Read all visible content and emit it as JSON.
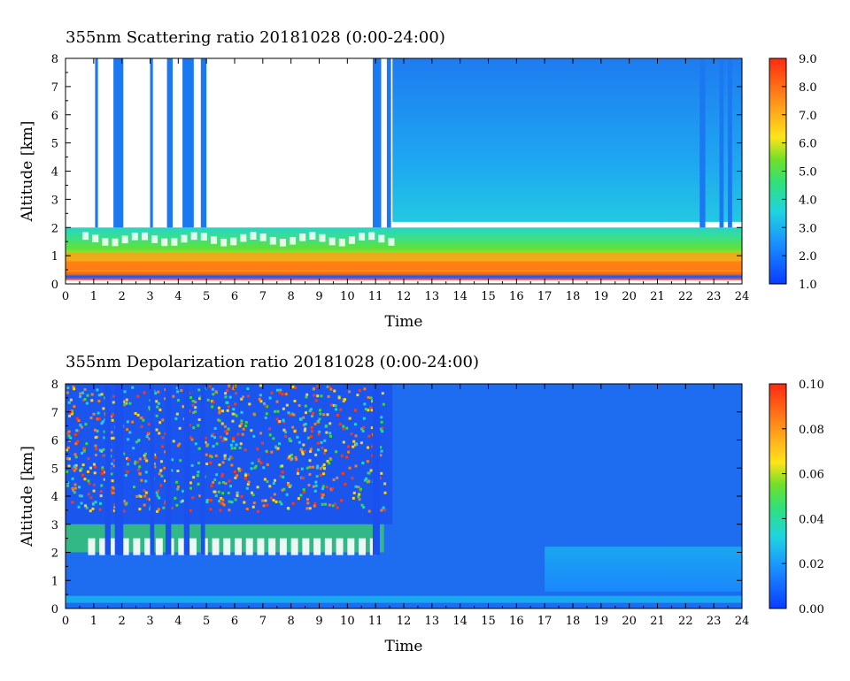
{
  "chart_data": [
    {
      "type": "heatmap",
      "title": "355nm Scattering ratio  20181028 (0:00-24:00)",
      "xlabel": "Time",
      "ylabel": "Altitude [km]",
      "xlim": [
        0,
        24
      ],
      "ylim": [
        0,
        8
      ],
      "x_ticks": [
        "0",
        "1",
        "2",
        "3",
        "4",
        "5",
        "6",
        "7",
        "8",
        "9",
        "10",
        "11",
        "12",
        "13",
        "14",
        "15",
        "16",
        "17",
        "18",
        "19",
        "20",
        "21",
        "22",
        "23",
        "24"
      ],
      "y_ticks": [
        "0",
        "1",
        "2",
        "3",
        "4",
        "5",
        "6",
        "7",
        "8"
      ],
      "colorbar": {
        "range": [
          1.0,
          9.0
        ],
        "ticks": [
          "1.0",
          "2.0",
          "3.0",
          "4.0",
          "5.0",
          "6.0",
          "7.0",
          "8.0",
          "9.0"
        ]
      },
      "colors": {
        "low": "#0a3cff",
        "mid_low": "#1fd4e0",
        "mid": "#35dc3a",
        "mid_high": "#ffe31a",
        "high": "#ff2a10"
      }
    },
    {
      "type": "heatmap",
      "title": "355nm Depolarization ratio  20181028 (0:00-24:00)",
      "xlabel": "Time",
      "ylabel": "Altitude [km]",
      "xlim": [
        0,
        24
      ],
      "ylim": [
        0,
        8
      ],
      "x_ticks": [
        "0",
        "1",
        "2",
        "3",
        "4",
        "5",
        "6",
        "7",
        "8",
        "9",
        "10",
        "11",
        "12",
        "13",
        "14",
        "15",
        "16",
        "17",
        "18",
        "19",
        "20",
        "21",
        "22",
        "23",
        "24"
      ],
      "y_ticks": [
        "0",
        "1",
        "2",
        "3",
        "4",
        "5",
        "6",
        "7",
        "8"
      ],
      "colorbar": {
        "range": [
          0.0,
          0.1
        ],
        "ticks": [
          "0.00",
          "0.02",
          "0.04",
          "0.06",
          "0.08",
          "0.10"
        ]
      },
      "colors": {
        "low": "#0a3cff",
        "mid_low": "#1fd4e0",
        "mid": "#35dc3a",
        "mid_high": "#ffe31a",
        "high": "#ff2a10"
      }
    }
  ]
}
